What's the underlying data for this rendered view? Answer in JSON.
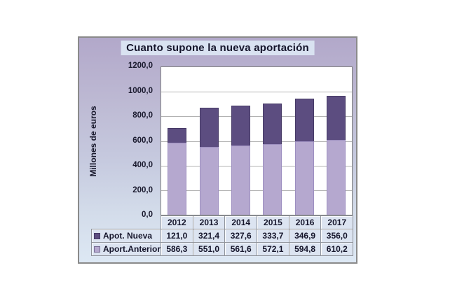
{
  "window": {
    "background": "#ffffff"
  },
  "chart_data": {
    "type": "bar",
    "stacked": true,
    "title": "Cuanto supone la nueva aportación",
    "ylabel": "Millones de euros",
    "xlabel": "",
    "categories": [
      "2012",
      "2013",
      "2014",
      "2015",
      "2016",
      "2017"
    ],
    "series": [
      {
        "name": "Apot. Nueva",
        "values": [
          121.0,
          321.4,
          327.6,
          333.7,
          346.9,
          356.0
        ],
        "display": [
          "121,0",
          "321,4",
          "327,6",
          "333,7",
          "346,9",
          "356,0"
        ],
        "color": "#5c4d80",
        "stack_order": "top"
      },
      {
        "name": "Aport.Anterior",
        "values": [
          586.3,
          551.0,
          561.6,
          572.1,
          594.8,
          610.2
        ],
        "display": [
          "586,3",
          "551,0",
          "561,6",
          "572,1",
          "594,8",
          "610,2"
        ],
        "color": "#b5a8cf",
        "stack_order": "bottom"
      }
    ],
    "ylim": [
      0,
      1200
    ],
    "ytick_step": 200,
    "ytick_labels": [
      "1200,0",
      "1000,0",
      "800,0",
      "600,0",
      "400,0",
      "200,0",
      "0,0"
    ],
    "grid": true,
    "legend_position": "table-left-column",
    "colors": {
      "plot_background": "#ffffff",
      "container_gradient_top": "#b2a8ca",
      "container_gradient_bottom": "#dde8f4",
      "title_background": "#d9e2f1",
      "table_cell_background": "#dce4f1",
      "gridline": "#b2b2b2",
      "text": "#14142a"
    }
  }
}
